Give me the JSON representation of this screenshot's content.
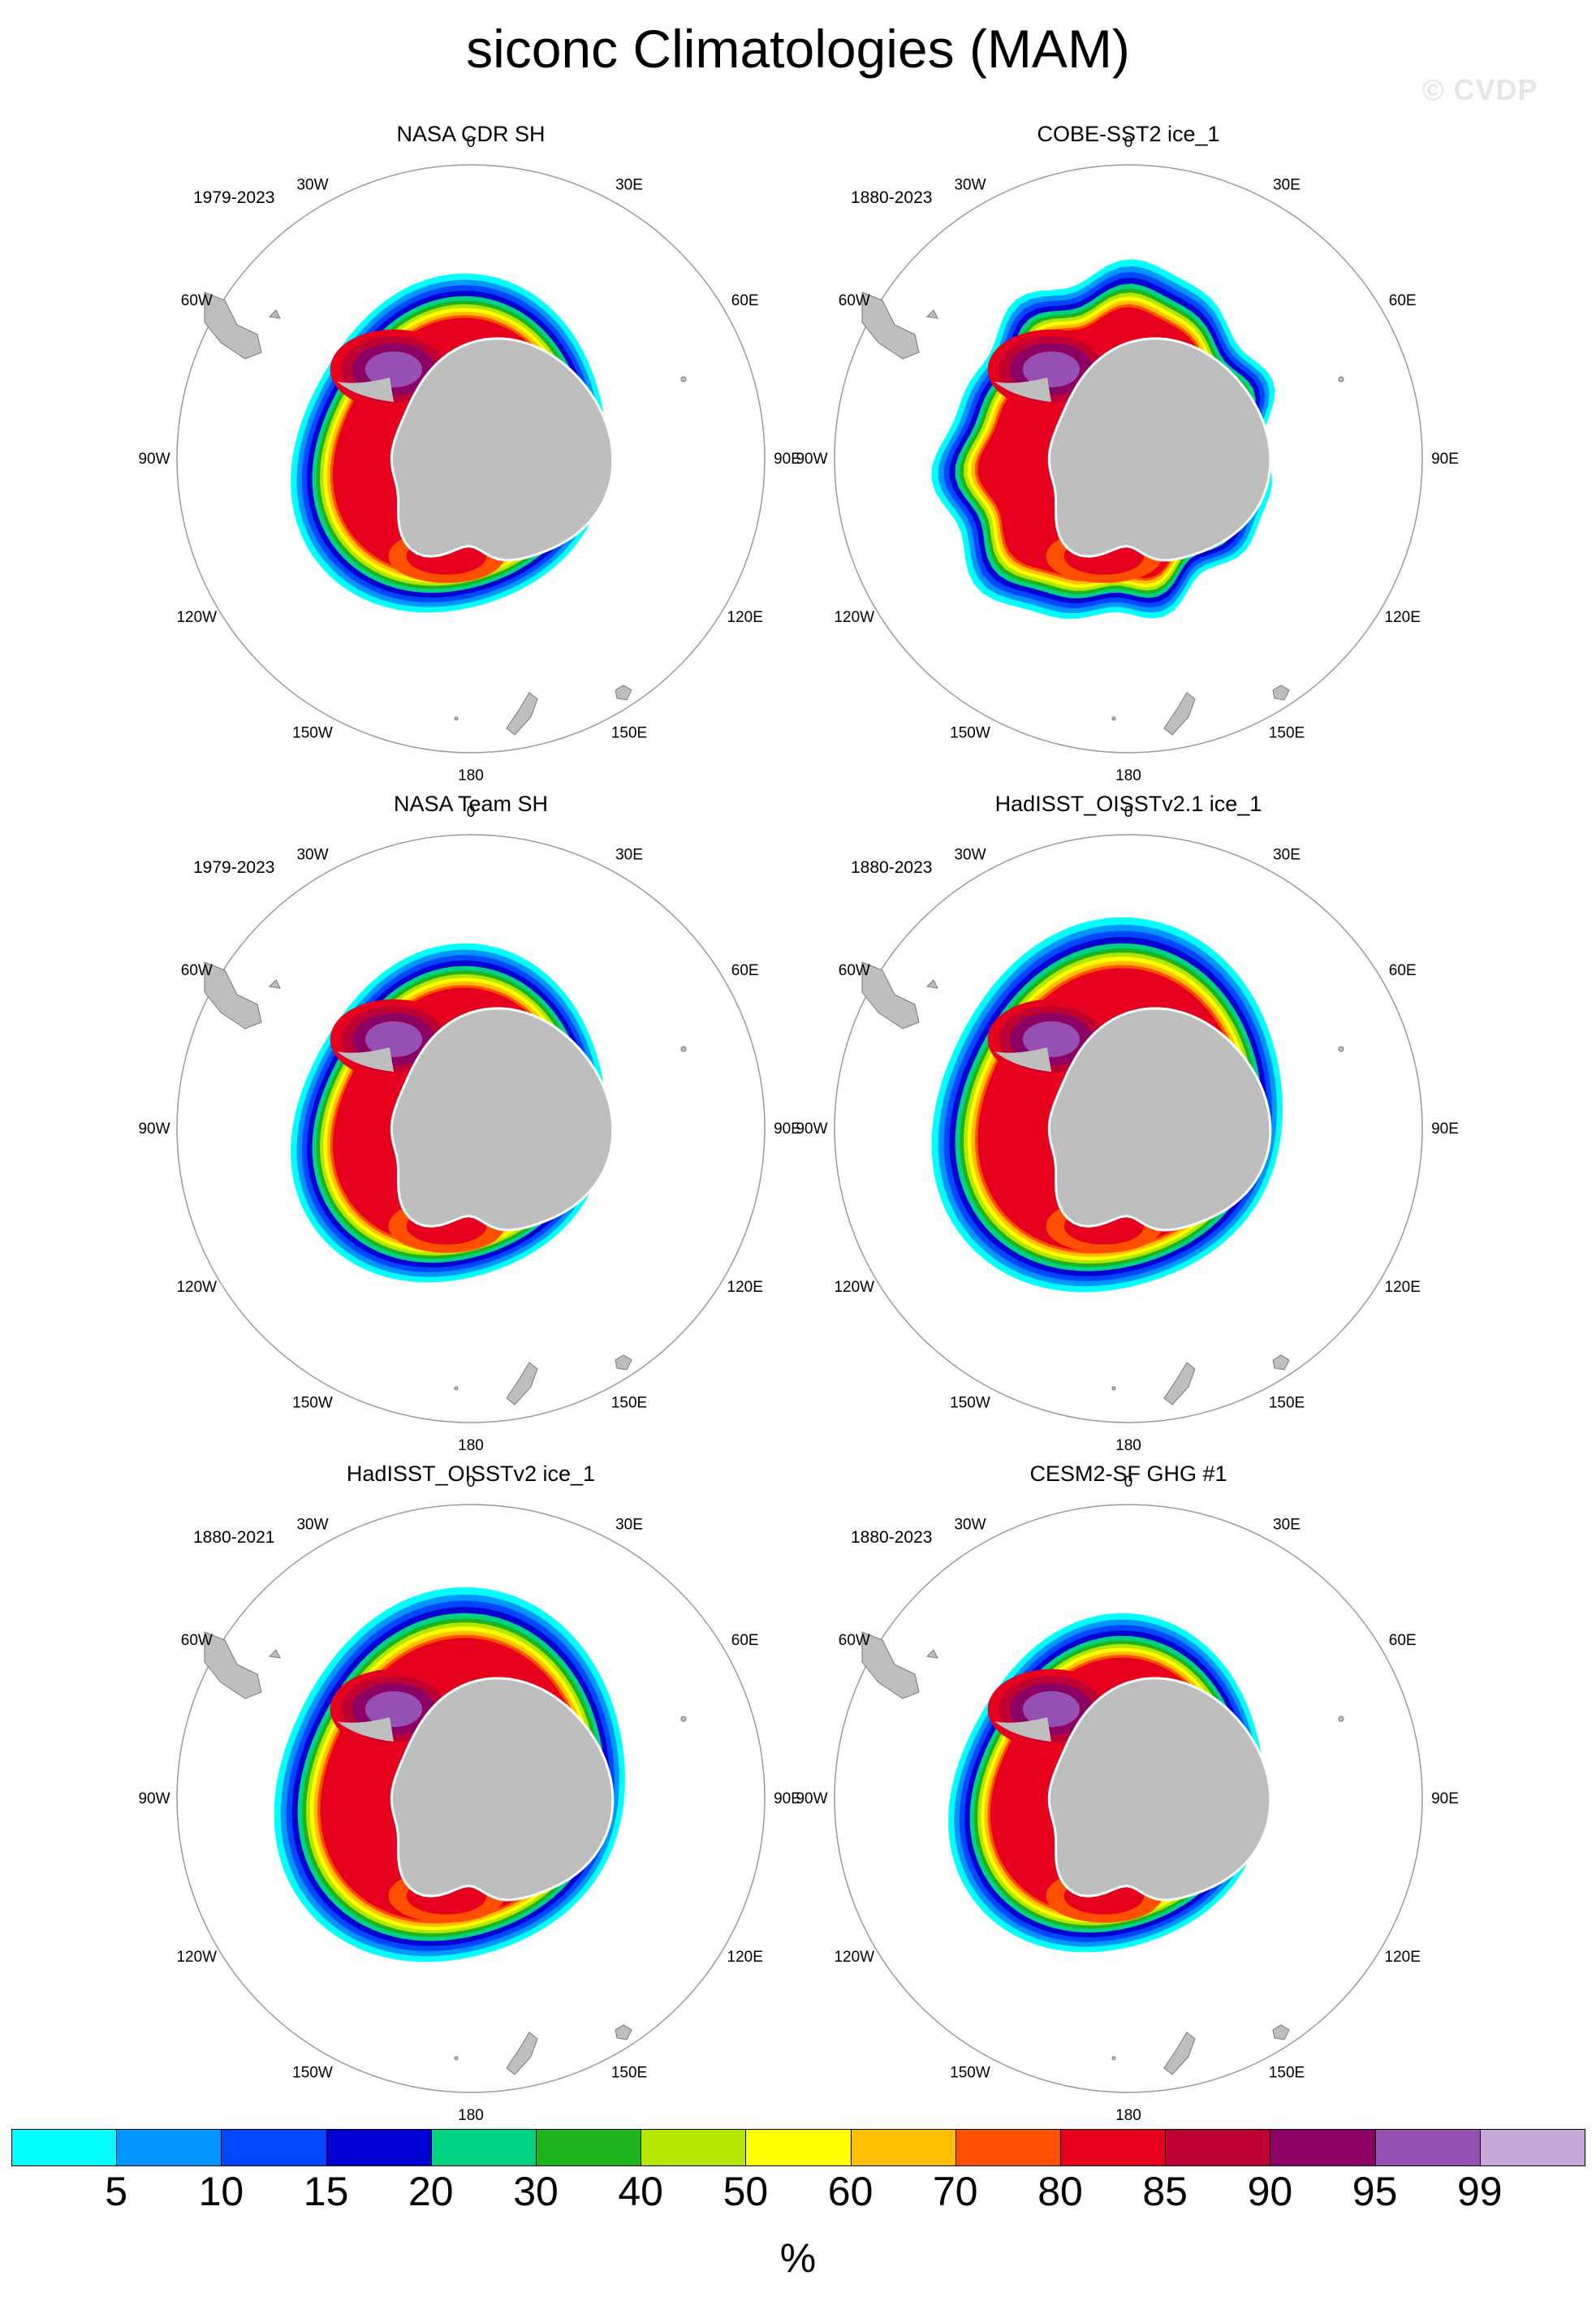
{
  "title": "siconc Climatologies (MAM)",
  "watermark": "© CVDP",
  "longitude_labels": [
    "0",
    "30E",
    "60E",
    "90E",
    "120E",
    "150E",
    "180",
    "150W",
    "120W",
    "90W",
    "60W",
    "30W"
  ],
  "panels": [
    {
      "title": "NASA CDR SH",
      "period": "1979-2023",
      "ice_extent": "compact",
      "core_sector": "weddell"
    },
    {
      "title": "COBE-SST2 ice_1",
      "period": "1880-2023",
      "ice_extent": "ragged",
      "core_sector": "weddell"
    },
    {
      "title": "NASA Team SH",
      "period": "1979-2023",
      "ice_extent": "compact",
      "core_sector": "weddell"
    },
    {
      "title": "HadISST_OISSTv2.1 ice_1",
      "period": "1880-2023",
      "ice_extent": "wide",
      "core_sector": "weddell"
    },
    {
      "title": "HadISST_OISSTv2 ice_1",
      "period": "1880-2021",
      "ice_extent": "wide",
      "core_sector": "weddell"
    },
    {
      "title": "CESM2-SF GHG #1",
      "period": "1880-2023",
      "ice_extent": "compact",
      "core_sector": "weddell"
    }
  ],
  "colorbar": {
    "units": "%",
    "tick_labels": [
      "5",
      "10",
      "15",
      "20",
      "30",
      "40",
      "50",
      "60",
      "70",
      "80",
      "85",
      "90",
      "95",
      "99"
    ],
    "colors": [
      "#00ffff",
      "#0096ff",
      "#0046ff",
      "#0000d2",
      "#00d282",
      "#1eb41e",
      "#b4e600",
      "#ffff00",
      "#ffbe00",
      "#ff5000",
      "#e6001e",
      "#be0032",
      "#8c0064",
      "#9650b4",
      "#c8aad8"
    ]
  },
  "land_color": "#bebebe"
}
